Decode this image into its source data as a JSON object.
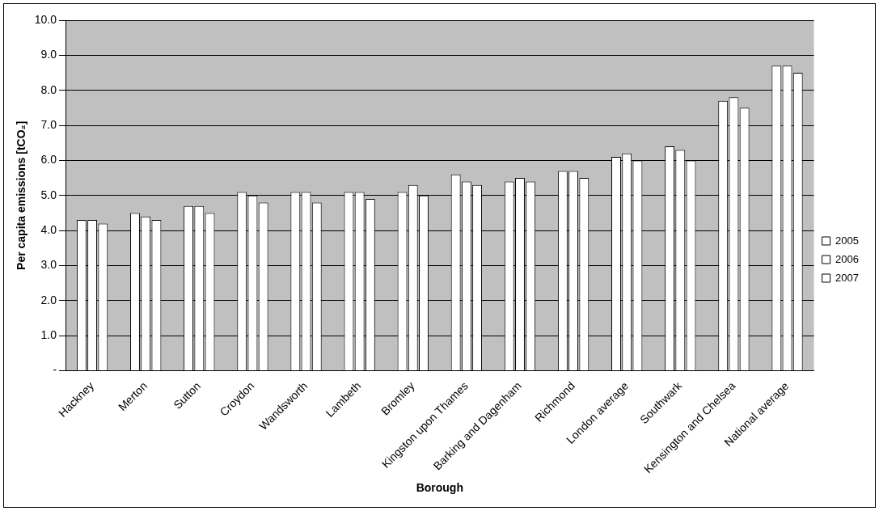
{
  "chart_data": {
    "type": "bar",
    "xlabel": "Borough",
    "ylabel": "Per capita emissions [tCO₂]",
    "categories": [
      "Hackney",
      "Merton",
      "Sutton",
      "Croydon",
      "Wandsworth",
      "Lambeth",
      "Bromley",
      "Kingston upon Thames",
      "Barking and Dagenham",
      "Richmond",
      "London average",
      "Southwark",
      "Kensington and Chelsea",
      "National average"
    ],
    "series": [
      {
        "name": "2005",
        "color": "#ffffff",
        "values": [
          4.3,
          4.5,
          4.7,
          5.1,
          5.1,
          5.1,
          5.1,
          5.6,
          5.4,
          5.7,
          6.1,
          6.4,
          7.7,
          8.7
        ]
      },
      {
        "name": "2006",
        "color": "#ffffff",
        "values": [
          4.3,
          4.4,
          4.7,
          5.0,
          5.1,
          5.1,
          5.3,
          5.4,
          5.5,
          5.7,
          6.2,
          6.3,
          7.8,
          8.7
        ]
      },
      {
        "name": "2007",
        "color": "#ffffff",
        "values": [
          4.2,
          4.3,
          4.5,
          4.8,
          4.8,
          4.9,
          5.0,
          5.3,
          5.4,
          5.5,
          6.0,
          6.0,
          7.5,
          8.5
        ]
      }
    ],
    "ylim": [
      0,
      10
    ],
    "yticks": [
      {
        "value": 0,
        "label": "-"
      },
      {
        "value": 1,
        "label": "1.0"
      },
      {
        "value": 2,
        "label": "2.0"
      },
      {
        "value": 3,
        "label": "3.0"
      },
      {
        "value": 4,
        "label": "4.0"
      },
      {
        "value": 5,
        "label": "5.0"
      },
      {
        "value": 6,
        "label": "6.0"
      },
      {
        "value": 7,
        "label": "7.0"
      },
      {
        "value": 8,
        "label": "8.0"
      },
      {
        "value": 9,
        "label": "9.0"
      },
      {
        "value": 10,
        "label": "10.0"
      }
    ],
    "grid": "y",
    "legend": "right"
  }
}
